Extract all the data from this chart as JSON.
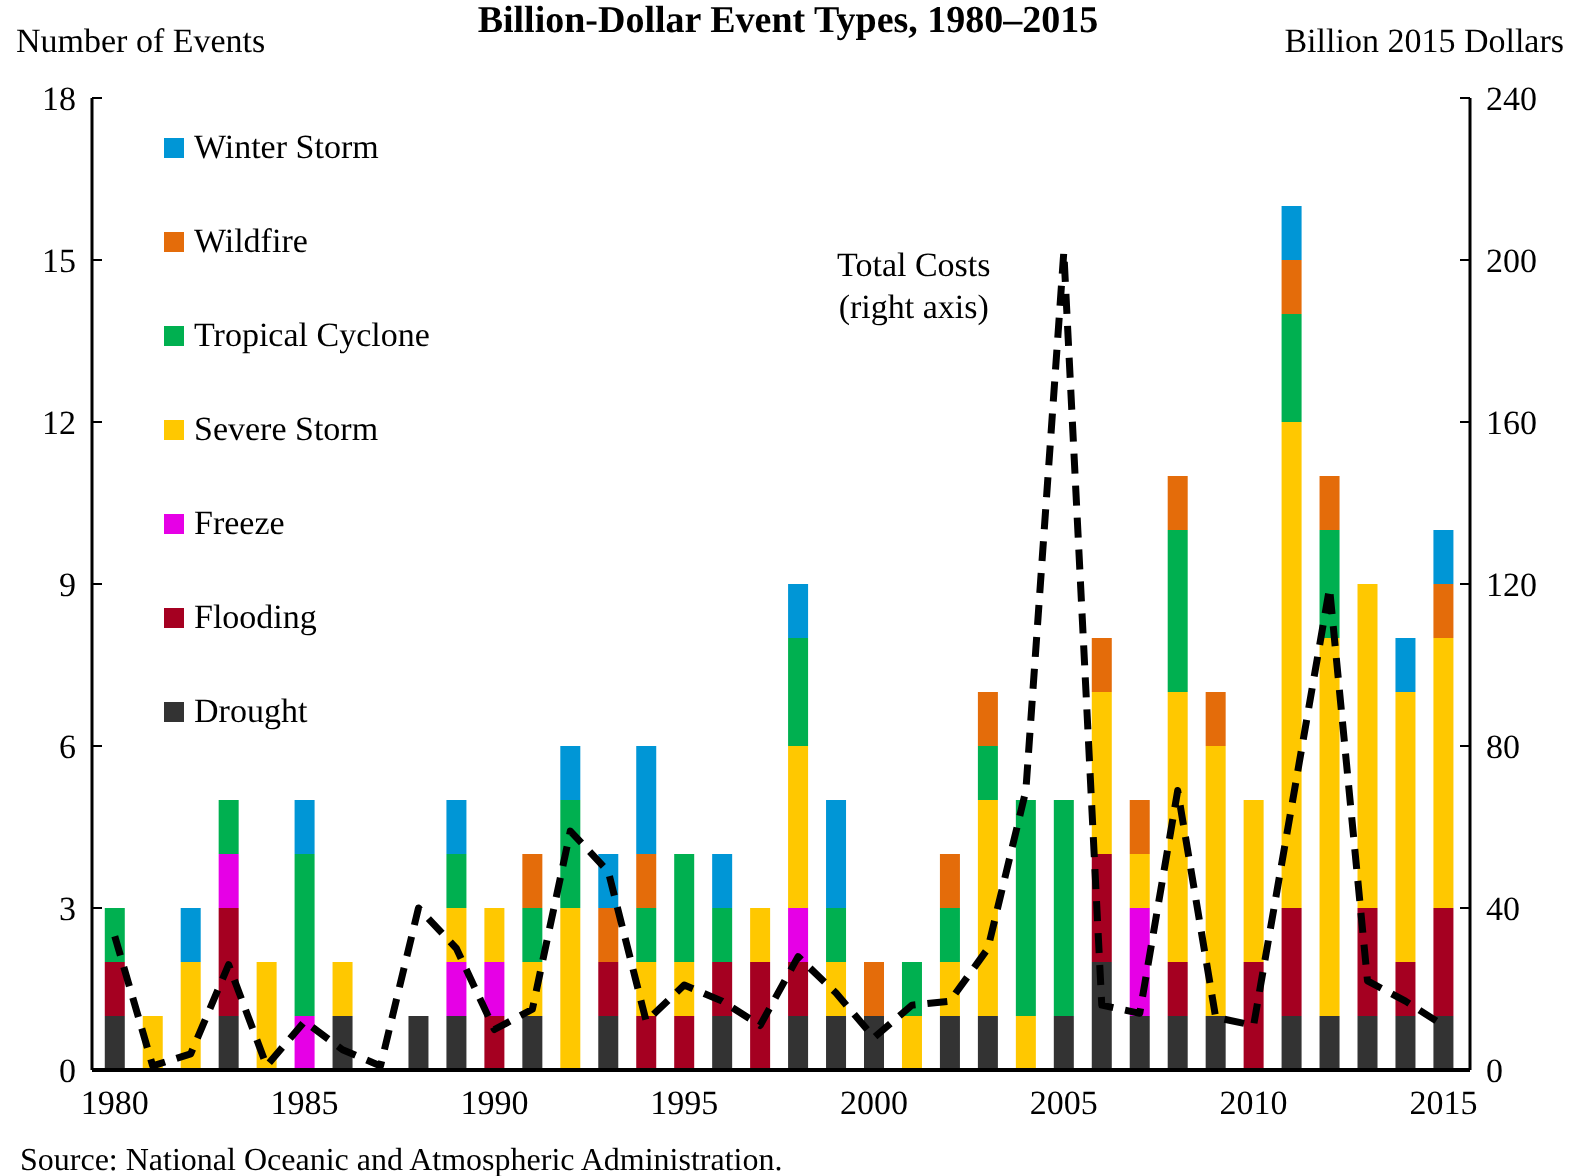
{
  "chart_data": {
    "type": "bar",
    "title": "Billion-Dollar Event Types, 1980–2015",
    "ylabel": "Number of Events",
    "y2label": "Billion 2015 Dollars",
    "x": [
      1980,
      1981,
      1982,
      1983,
      1984,
      1985,
      1986,
      1987,
      1988,
      1989,
      1990,
      1991,
      1992,
      1993,
      1994,
      1995,
      1996,
      1997,
      1998,
      1999,
      2000,
      2001,
      2002,
      2003,
      2004,
      2005,
      2006,
      2007,
      2008,
      2009,
      2010,
      2011,
      2012,
      2013,
      2014,
      2015
    ],
    "stacked": true,
    "series": [
      {
        "name": "Drought",
        "color": "#333333",
        "values": [
          1,
          0,
          0,
          1,
          0,
          0,
          1,
          0,
          1,
          1,
          0,
          1,
          0,
          1,
          0,
          0,
          1,
          0,
          1,
          1,
          1,
          0,
          1,
          1,
          0,
          1,
          2,
          1,
          1,
          1,
          0,
          1,
          1,
          1,
          1,
          1
        ]
      },
      {
        "name": "Flooding",
        "color": "#a50021",
        "values": [
          1,
          0,
          0,
          2,
          0,
          0,
          0,
          0,
          0,
          0,
          1,
          0,
          0,
          1,
          1,
          1,
          1,
          2,
          1,
          0,
          0,
          0,
          0,
          0,
          0,
          0,
          2,
          0,
          1,
          0,
          2,
          2,
          0,
          2,
          1,
          2
        ]
      },
      {
        "name": "Freeze",
        "color": "#e600e6",
        "values": [
          0,
          0,
          0,
          1,
          0,
          1,
          0,
          0,
          0,
          1,
          1,
          0,
          0,
          0,
          0,
          0,
          0,
          0,
          1,
          0,
          0,
          0,
          0,
          0,
          0,
          0,
          0,
          2,
          0,
          0,
          0,
          0,
          0,
          0,
          0,
          0
        ]
      },
      {
        "name": "Severe Storm",
        "color": "#ffc800",
        "values": [
          0,
          1,
          2,
          0,
          2,
          0,
          1,
          0,
          0,
          1,
          1,
          1,
          3,
          0,
          1,
          1,
          0,
          1,
          3,
          1,
          0,
          1,
          1,
          4,
          1,
          0,
          3,
          1,
          5,
          5,
          3,
          9,
          7,
          6,
          5,
          5
        ]
      },
      {
        "name": "Tropical Cyclone",
        "color": "#00b050",
        "values": [
          1,
          0,
          0,
          1,
          0,
          3,
          0,
          0,
          0,
          1,
          0,
          1,
          2,
          0,
          1,
          2,
          1,
          0,
          2,
          1,
          0,
          1,
          1,
          1,
          4,
          4,
          0,
          0,
          3,
          0,
          0,
          2,
          2,
          0,
          0,
          0
        ]
      },
      {
        "name": "Wildfire",
        "color": "#e46c0a",
        "values": [
          0,
          0,
          0,
          0,
          0,
          0,
          0,
          0,
          0,
          0,
          0,
          1,
          0,
          1,
          1,
          0,
          0,
          0,
          0,
          0,
          1,
          0,
          1,
          1,
          0,
          0,
          1,
          1,
          1,
          1,
          0,
          1,
          1,
          0,
          0,
          1
        ]
      },
      {
        "name": "Winter Storm",
        "color": "#0096d6",
        "values": [
          0,
          0,
          1,
          0,
          0,
          1,
          0,
          0,
          0,
          1,
          0,
          0,
          1,
          1,
          2,
          0,
          1,
          0,
          1,
          2,
          0,
          0,
          0,
          0,
          0,
          0,
          0,
          0,
          0,
          0,
          0,
          1,
          0,
          0,
          1,
          1
        ]
      },
      {
        "name": "Total Costs\n(right axis)",
        "type": "line",
        "axis": "y2",
        "color": "#000000",
        "line_style": "dashed",
        "values": [
          33,
          1,
          4,
          26,
          1,
          12,
          5,
          1,
          40,
          30,
          10,
          15,
          59,
          49,
          12,
          21,
          17,
          11,
          28,
          19,
          8,
          16,
          17,
          30,
          69,
          202,
          16,
          14,
          69,
          13,
          11,
          65,
          119,
          22,
          17,
          11
        ]
      }
    ],
    "xlim": [
      1979.4,
      2015.7
    ],
    "xticks": [
      1980,
      1985,
      1990,
      1995,
      2000,
      2005,
      2010,
      2015
    ],
    "ylim": [
      0,
      18
    ],
    "yticks": [
      0,
      3,
      6,
      9,
      12,
      15,
      18
    ],
    "y2lim": [
      0,
      240
    ],
    "y2ticks": [
      0,
      40,
      80,
      120,
      160,
      200,
      240
    ],
    "legend": "top left",
    "grid": false,
    "annotations": [
      "Source: National Oceanic and Atmospheric Administration."
    ]
  }
}
